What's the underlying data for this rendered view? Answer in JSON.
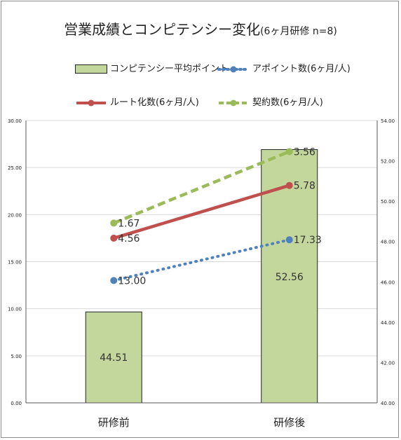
{
  "title": {
    "main": "営業成績とコンピテンシー変化",
    "sub": "(6ヶ月研修  n=8)"
  },
  "legend": [
    {
      "label": "コンピテンシー平均ポイント",
      "kind": "bar",
      "color": "#c3d69b"
    },
    {
      "label": "アポイント数(6ヶ月/人)",
      "kind": "dotted",
      "color": "#4f81bd"
    },
    {
      "label": "ルート化数(6ヶ月/人)",
      "kind": "solid",
      "color": "#c0504d"
    },
    {
      "label": "契約数(6ヶ月/人)",
      "kind": "dashed",
      "color": "#9bbb59"
    }
  ],
  "chart_data": {
    "type": "bar",
    "title": "営業成績とコンピテンシー変化(6ヶ月研修  n=8)",
    "categories": [
      "研修前",
      "研修後"
    ],
    "y_left": {
      "ylim": [
        0,
        30
      ],
      "ticks": [
        "0.00",
        "5.00",
        "10.00",
        "15.00",
        "20.00",
        "25.00",
        "30.00"
      ]
    },
    "y_right": {
      "ylim": [
        40,
        54
      ],
      "ticks": [
        "40.00",
        "42.00",
        "44.00",
        "46.00",
        "48.00",
        "50.00",
        "52.00",
        "54.00"
      ]
    },
    "bars": {
      "name": "コンピテンシー平均ポイント",
      "axis": "right",
      "values": [
        44.51,
        52.56
      ],
      "labels": [
        "44.51",
        "52.56"
      ],
      "color": "#c3d69b",
      "edge": "#222222"
    },
    "series": [
      {
        "name": "アポイント数(6ヶ月/人)",
        "type": "line",
        "style": "dotted",
        "axis": "left",
        "color": "#4f81bd",
        "values": [
          13.0,
          17.33
        ],
        "labels": [
          "13.00",
          "17.33"
        ]
      },
      {
        "name": "ルート化数(6ヶ月/人)",
        "type": "line",
        "style": "solid",
        "axis": "left",
        "color": "#c0504d",
        "values": [
          17.5,
          23.1
        ],
        "labels": [
          "4.56",
          "5.78"
        ]
      },
      {
        "name": "契約数(6ヶ月/人)",
        "type": "line",
        "style": "dashed",
        "axis": "left",
        "color": "#9bbb59",
        "values": [
          19.1,
          26.7
        ],
        "labels": [
          "1.67",
          "3.56"
        ]
      }
    ],
    "grid": true
  }
}
